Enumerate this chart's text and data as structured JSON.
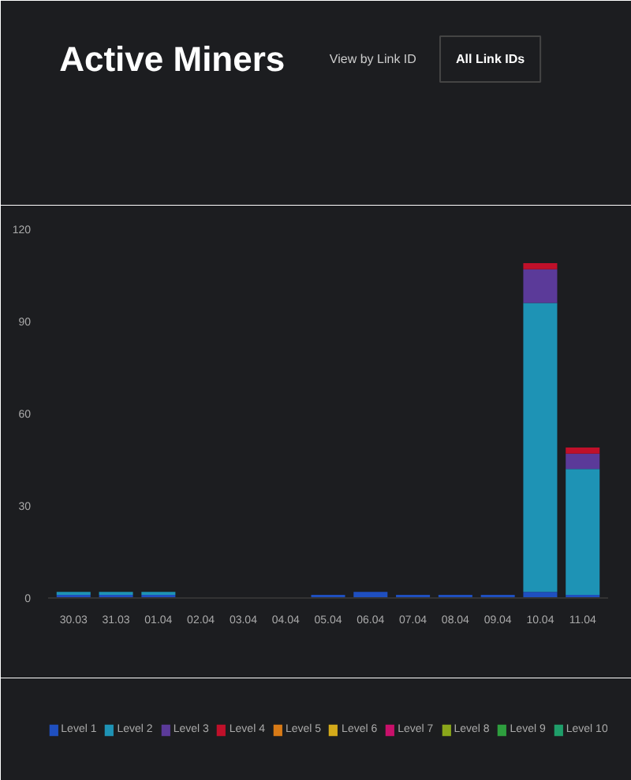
{
  "chart_data": {
    "type": "bar",
    "title": "Active Miners",
    "annotations": [
      "View by Link ID",
      "All Link IDs"
    ],
    "categories": [
      "30.03",
      "31.03",
      "01.04",
      "02.04",
      "03.04",
      "04.04",
      "05.04",
      "06.04",
      "07.04",
      "08.04",
      "09.04",
      "10.04",
      "11.04"
    ],
    "stacked": true,
    "ylim": [
      0,
      120
    ],
    "yticks": [
      0,
      30,
      60,
      90,
      120
    ],
    "legend": "bottom",
    "grid": false,
    "series": [
      {
        "name": "Level 1",
        "color": "#1f4fbf",
        "values": [
          1,
          1,
          1,
          0,
          0,
          0,
          1,
          2,
          1,
          1,
          1,
          2,
          1
        ]
      },
      {
        "name": "Level 2",
        "color": "#1e93b5",
        "values": [
          1,
          1,
          1,
          0,
          0,
          0,
          0,
          0,
          0,
          0,
          0,
          94,
          41
        ]
      },
      {
        "name": "Level 3",
        "color": "#5b3a99",
        "values": [
          0,
          0,
          0,
          0,
          0,
          0,
          0,
          0,
          0,
          0,
          0,
          11,
          5
        ]
      },
      {
        "name": "Level 4",
        "color": "#c0102a",
        "values": [
          0,
          0,
          0,
          0,
          0,
          0,
          0,
          0,
          0,
          0,
          0,
          2,
          2
        ]
      },
      {
        "name": "Level 5",
        "color": "#d87a16",
        "values": [
          0,
          0,
          0,
          0,
          0,
          0,
          0,
          0,
          0,
          0,
          0,
          0,
          0
        ]
      },
      {
        "name": "Level 6",
        "color": "#d4aa1a",
        "values": [
          0,
          0,
          0,
          0,
          0,
          0,
          0,
          0,
          0,
          0,
          0,
          0,
          0
        ]
      },
      {
        "name": "Level 7",
        "color": "#c8106a",
        "values": [
          0,
          0,
          0,
          0,
          0,
          0,
          0,
          0,
          0,
          0,
          0,
          0,
          0
        ]
      },
      {
        "name": "Level 8",
        "color": "#8aa61a",
        "values": [
          0,
          0,
          0,
          0,
          0,
          0,
          0,
          0,
          0,
          0,
          0,
          0,
          0
        ]
      },
      {
        "name": "Level 9",
        "color": "#2e9e3e",
        "values": [
          0,
          0,
          0,
          0,
          0,
          0,
          0,
          0,
          0,
          0,
          0,
          0,
          0
        ]
      },
      {
        "name": "Level 10",
        "color": "#1f9e6a",
        "values": [
          0,
          0,
          0,
          0,
          0,
          0,
          0,
          0,
          0,
          0,
          0,
          0,
          0
        ]
      }
    ]
  }
}
